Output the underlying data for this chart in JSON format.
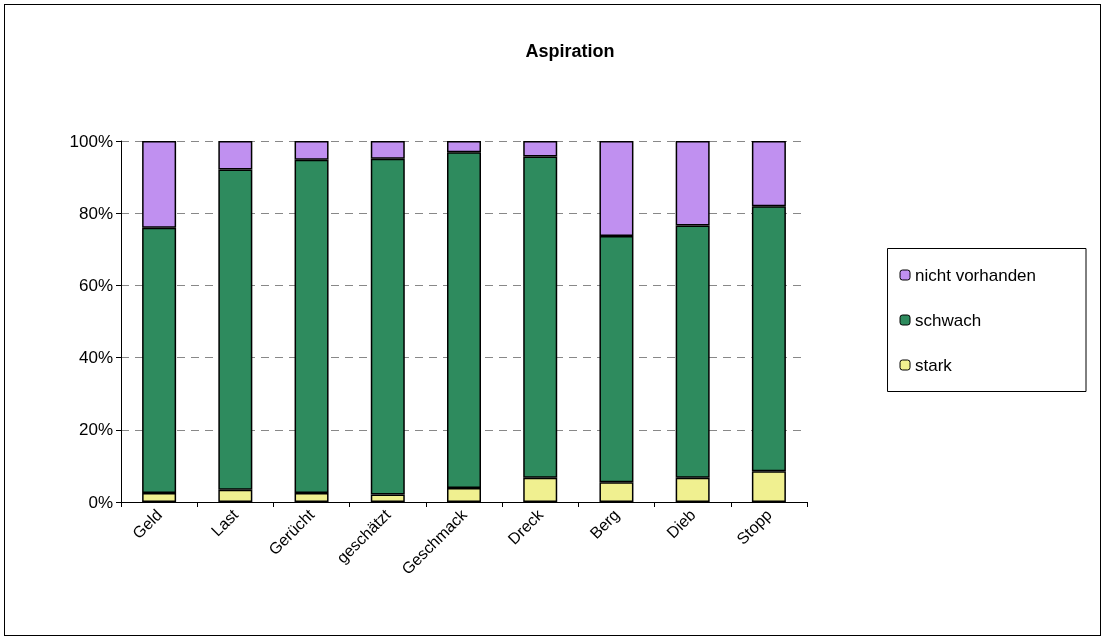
{
  "chart_data": {
    "type": "bar",
    "title": "Aspiration",
    "stacked": true,
    "categories": [
      "Geld",
      "Last",
      "Gerücht",
      "geschätzt",
      "Geschmack",
      "Dreck",
      "Berg",
      "Dieb",
      "Stopp"
    ],
    "series": [
      {
        "name": "stark",
        "color": "#f0f090",
        "values": [
          2.5,
          3.4,
          2.5,
          2.1,
          3.9,
          6.7,
          5.5,
          6.7,
          8.5
        ]
      },
      {
        "name": "schwach",
        "color": "#2e8b5e",
        "values": [
          73.5,
          88.7,
          92.3,
          93.0,
          93.0,
          89.0,
          68.2,
          69.9,
          73.4
        ]
      },
      {
        "name": "nicht vorhanden",
        "color": "#c090f0",
        "values": [
          24.0,
          7.9,
          5.2,
          4.9,
          3.1,
          4.3,
          26.3,
          23.4,
          18.1
        ]
      }
    ],
    "ylim": [
      0,
      100
    ],
    "yticks": [
      {
        "value": 0,
        "label": "0%"
      },
      {
        "value": 20,
        "label": "20%"
      },
      {
        "value": 40,
        "label": "40%"
      },
      {
        "value": 60,
        "label": "60%"
      },
      {
        "value": 80,
        "label": "80%"
      },
      {
        "value": 100,
        "label": "100%"
      }
    ],
    "grid": "y",
    "legend": "right"
  }
}
